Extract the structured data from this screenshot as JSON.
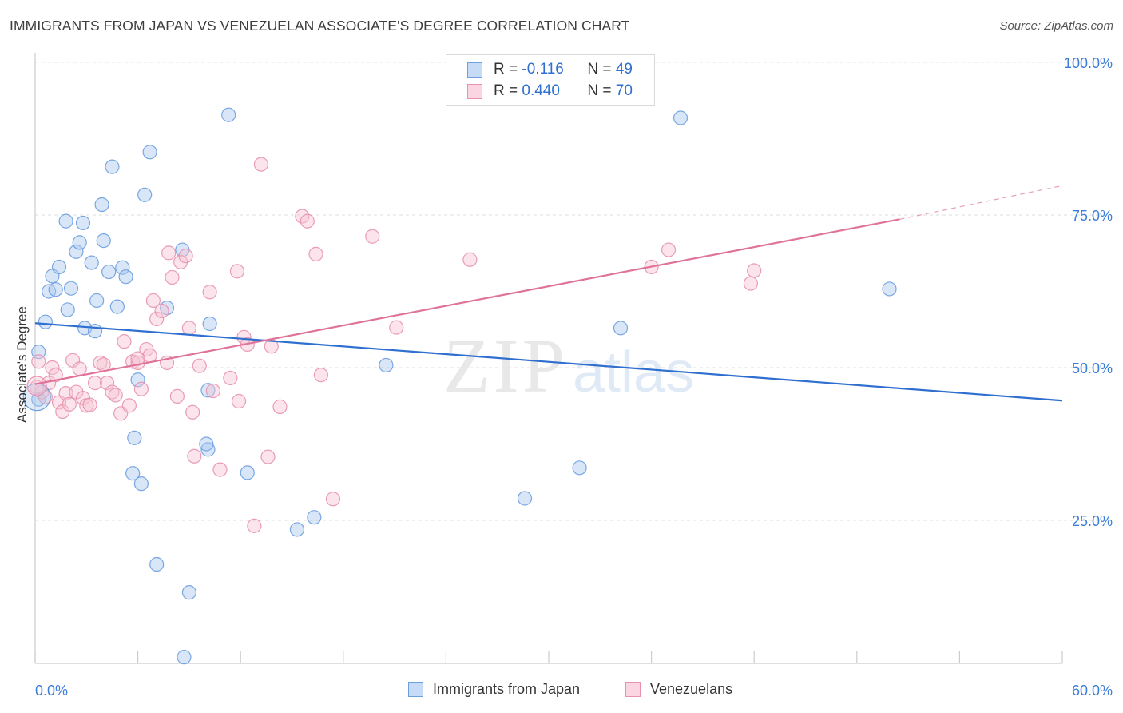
{
  "title": "IMMIGRANTS FROM JAPAN VS VENEZUELAN ASSOCIATE'S DEGREE CORRELATION CHART",
  "source": "Source: ZipAtlas.com",
  "watermark": {
    "zip": "ZIP",
    "atlas": "atlas"
  },
  "legend": {
    "rows": [
      {
        "r_label": "R =",
        "r_value": "-0.116",
        "n_label": "N =",
        "n_value": "49",
        "color": "#a9c8f0",
        "border": "#6d9fe0"
      },
      {
        "r_label": "R =",
        "r_value": "0.440",
        "n_label": "N =",
        "n_value": "70",
        "color": "#f7c3d3",
        "border": "#e892ae"
      }
    ],
    "bottom": [
      {
        "label": "Immigrants from Japan",
        "color": "#c5dbf6",
        "border": "#6d9fe0"
      },
      {
        "label": "Venezuelans",
        "color": "#fbd5e1",
        "border": "#e892ae"
      }
    ]
  },
  "chart_data": {
    "type": "scatter",
    "title": "IMMIGRANTS FROM JAPAN VS VENEZUELAN ASSOCIATE'S DEGREE CORRELATION CHART",
    "xlabel": "",
    "ylabel": "Associate's Degree",
    "xlim": [
      0,
      60
    ],
    "ylim": [
      0,
      103
    ],
    "x_tick_labels": [
      "0.0%",
      "60.0%"
    ],
    "y_ticks": [
      25,
      50,
      75,
      100
    ],
    "y_tick_labels": [
      "25.0%",
      "50.0%",
      "75.0%",
      "100.0%"
    ],
    "grid": true,
    "legend_position": "top-center",
    "series": [
      {
        "name": "Immigrants from Japan",
        "color": "#6d9fe0",
        "fill": "#a9c8f0",
        "trend": {
          "x": [
            0,
            60
          ],
          "y": [
            57.3,
            44.6
          ],
          "color": "#2f6fcf"
        },
        "points": [
          [
            0.2,
            44.8
          ],
          [
            0.2,
            52.6
          ],
          [
            0.6,
            57.5
          ],
          [
            0.8,
            62.5
          ],
          [
            1.0,
            65.0
          ],
          [
            1.2,
            62.8
          ],
          [
            1.4,
            66.5
          ],
          [
            1.8,
            74.0
          ],
          [
            1.9,
            59.5
          ],
          [
            2.1,
            63.0
          ],
          [
            2.4,
            69.0
          ],
          [
            2.6,
            70.5
          ],
          [
            2.8,
            73.7
          ],
          [
            2.9,
            56.5
          ],
          [
            3.3,
            67.2
          ],
          [
            3.5,
            56.0
          ],
          [
            3.6,
            61.0
          ],
          [
            3.9,
            76.7
          ],
          [
            4.0,
            70.8
          ],
          [
            4.3,
            65.7
          ],
          [
            4.5,
            82.9
          ],
          [
            4.8,
            60.0
          ],
          [
            5.1,
            66.4
          ],
          [
            5.3,
            64.9
          ],
          [
            5.7,
            32.7
          ],
          [
            5.8,
            38.5
          ],
          [
            6.0,
            48.0
          ],
          [
            6.2,
            31.0
          ],
          [
            6.4,
            78.3
          ],
          [
            6.7,
            85.3
          ],
          [
            7.1,
            17.8
          ],
          [
            7.7,
            59.8
          ],
          [
            8.6,
            69.3
          ],
          [
            8.7,
            2.6
          ],
          [
            9.0,
            13.2
          ],
          [
            10.1,
            46.3
          ],
          [
            10.1,
            36.6
          ],
          [
            10.2,
            57.2
          ],
          [
            11.3,
            91.4
          ],
          [
            12.4,
            32.8
          ],
          [
            15.3,
            23.5
          ],
          [
            16.3,
            25.5
          ],
          [
            20.5,
            50.4
          ],
          [
            28.6,
            28.6
          ],
          [
            31.8,
            33.6
          ],
          [
            34.2,
            56.5
          ],
          [
            37.7,
            90.9
          ],
          [
            49.9,
            62.9
          ],
          [
            10.0,
            37.5
          ]
        ]
      },
      {
        "name": "Venezuelans",
        "color": "#e892ae",
        "fill": "#f7c3d3",
        "trend": {
          "x": [
            0,
            50.5
          ],
          "y": [
            47.3,
            74.3
          ],
          "color": "#e0739b"
        },
        "trend_dashed": {
          "x": [
            50.5,
            60
          ],
          "y": [
            74.3,
            79.8
          ]
        },
        "points": [
          [
            0.2,
            51.0
          ],
          [
            0.4,
            46.0
          ],
          [
            0.6,
            45.2
          ],
          [
            0.8,
            47.5
          ],
          [
            1.0,
            50.0
          ],
          [
            1.2,
            48.8
          ],
          [
            1.4,
            44.3
          ],
          [
            1.6,
            42.8
          ],
          [
            1.8,
            45.8
          ],
          [
            2.0,
            44.0
          ],
          [
            2.2,
            51.2
          ],
          [
            2.4,
            46.0
          ],
          [
            2.6,
            49.8
          ],
          [
            2.8,
            45.0
          ],
          [
            3.0,
            43.8
          ],
          [
            3.2,
            43.9
          ],
          [
            3.5,
            47.5
          ],
          [
            3.8,
            50.8
          ],
          [
            4.0,
            50.5
          ],
          [
            4.2,
            47.5
          ],
          [
            4.5,
            46.0
          ],
          [
            4.7,
            45.5
          ],
          [
            5.0,
            42.5
          ],
          [
            5.2,
            54.3
          ],
          [
            5.5,
            43.8
          ],
          [
            5.7,
            51.0
          ],
          [
            6.0,
            50.8
          ],
          [
            6.2,
            46.5
          ],
          [
            6.5,
            53.0
          ],
          [
            6.7,
            52.0
          ],
          [
            6.9,
            61.0
          ],
          [
            7.1,
            58.0
          ],
          [
            7.4,
            59.3
          ],
          [
            7.7,
            50.8
          ],
          [
            7.8,
            68.8
          ],
          [
            8.0,
            64.8
          ],
          [
            8.3,
            45.3
          ],
          [
            8.5,
            67.3
          ],
          [
            8.8,
            68.3
          ],
          [
            9.0,
            56.5
          ],
          [
            9.2,
            42.7
          ],
          [
            9.3,
            35.5
          ],
          [
            9.6,
            50.3
          ],
          [
            10.2,
            62.4
          ],
          [
            10.4,
            46.2
          ],
          [
            10.8,
            33.3
          ],
          [
            11.4,
            48.3
          ],
          [
            11.8,
            65.8
          ],
          [
            11.9,
            44.5
          ],
          [
            12.2,
            55.0
          ],
          [
            12.4,
            53.8
          ],
          [
            12.8,
            24.1
          ],
          [
            13.2,
            83.3
          ],
          [
            13.6,
            35.4
          ],
          [
            13.8,
            53.5
          ],
          [
            14.3,
            43.6
          ],
          [
            15.6,
            74.8
          ],
          [
            15.9,
            74.0
          ],
          [
            16.4,
            68.6
          ],
          [
            16.7,
            48.8
          ],
          [
            17.4,
            28.5
          ],
          [
            19.7,
            71.5
          ],
          [
            21.1,
            56.6
          ],
          [
            25.4,
            67.7
          ],
          [
            36.0,
            66.5
          ],
          [
            37.0,
            69.3
          ],
          [
            41.8,
            63.8
          ],
          [
            42.0,
            65.9
          ],
          [
            6.0,
            51.5
          ],
          [
            0.1,
            46.8
          ]
        ]
      }
    ]
  }
}
